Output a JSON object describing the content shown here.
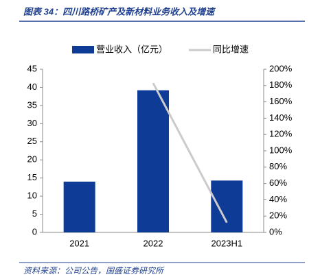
{
  "chart_data": {
    "type": "bar",
    "title": "图表 34：四川路桥矿产及新材料业务收入及增速",
    "source": "资料来源：公司公告，国盛证券研究所",
    "categories": [
      "2021",
      "2022",
      "2023H1"
    ],
    "series": [
      {
        "name": "营业收入（亿元）",
        "type": "bar",
        "color": "#0e3b96",
        "values": [
          14,
          39.2,
          14.3
        ]
      },
      {
        "name": "同比增速",
        "type": "line",
        "axis": "y2",
        "color": "#cbcbcb",
        "values": [
          null,
          183,
          12
        ]
      }
    ],
    "ylim": [
      0,
      45
    ],
    "yticks": [
      0,
      5,
      10,
      15,
      20,
      25,
      30,
      35,
      40,
      45
    ],
    "y2lim": [
      0,
      200
    ],
    "y2ticks": [
      {
        "value": 0,
        "label": "0%"
      },
      {
        "value": 20,
        "label": "20%"
      },
      {
        "value": 40,
        "label": "40%"
      },
      {
        "value": 60,
        "label": "60%"
      },
      {
        "value": 80,
        "label": "80%"
      },
      {
        "value": 100,
        "label": "100%"
      },
      {
        "value": 120,
        "label": "120%"
      },
      {
        "value": 140,
        "label": "140%"
      },
      {
        "value": 160,
        "label": "160%"
      },
      {
        "value": 180,
        "label": "180%"
      },
      {
        "value": 200,
        "label": "200%"
      }
    ],
    "grid": false
  }
}
